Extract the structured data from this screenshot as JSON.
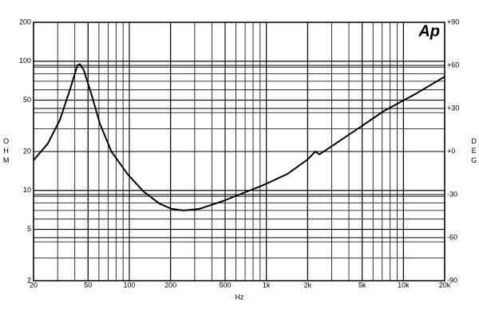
{
  "chart_data": {
    "type": "line",
    "logo": "Ap",
    "x_label": "Hz",
    "y_label": "OHM",
    "y2_label": "DEG",
    "x": [
      20,
      25.4,
      31.1,
      37.2,
      41.8,
      43.6,
      46.6,
      53.3,
      60.9,
      74,
      97,
      127,
      166,
      203,
      249,
      325,
      487,
      636,
      951,
      1423,
      1990,
      2278,
      2435,
      3191,
      4778,
      7154,
      12310,
      20000
    ],
    "values": [
      17.1,
      23,
      35,
      62,
      93,
      95,
      85,
      54,
      33,
      20,
      13.4,
      9.8,
      7.9,
      7.2,
      7.0,
      7.2,
      8.3,
      9.3,
      11,
      13.4,
      17.3,
      20,
      19,
      23,
      30.6,
      41,
      56,
      76
    ],
    "color": "#000000",
    "log_x": true,
    "log_y": true,
    "grid": true,
    "xlim": [
      20,
      20000
    ],
    "xticks": [
      20,
      50,
      100,
      200,
      500,
      {
        "value": 1000,
        "label": "1k"
      },
      {
        "value": 2000,
        "label": "2k"
      },
      {
        "value": 5000,
        "label": "5k"
      },
      {
        "value": 10000,
        "label": "10k"
      },
      {
        "value": 20000,
        "label": "20k"
      }
    ],
    "ylim": [
      2,
      200
    ],
    "yticks": [
      2,
      5,
      10,
      20,
      50,
      100,
      200
    ],
    "y2lim": [
      -90,
      90
    ],
    "y2ticks": [
      -90,
      -60,
      -30,
      {
        "value": 0,
        "label": "+0"
      },
      {
        "value": 30,
        "label": "+30"
      },
      {
        "value": 60,
        "label": "+60"
      },
      {
        "value": 90,
        "label": "+90"
      }
    ]
  }
}
